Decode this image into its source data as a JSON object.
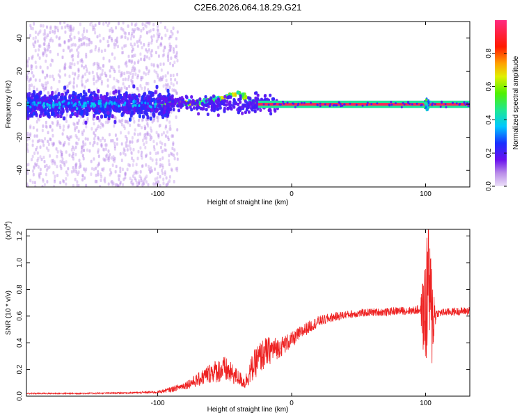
{
  "title": "C2E6.2026.064.18.29.G21",
  "colors": {
    "snr_line": "#ee2222",
    "frame": "#000000",
    "low_density": "#c9a8f2",
    "high_density": "#5a0fe6"
  },
  "chart_data": [
    {
      "type": "heatmap",
      "name": "spectrogram",
      "xlabel": "Height of straight line (km)",
      "ylabel": "Frequency (Hz)",
      "xlim": [
        -198,
        133
      ],
      "ylim": [
        -50,
        50
      ],
      "x_ticks": [
        -100,
        0,
        100
      ],
      "x_tick_labels": [
        "-100",
        "0",
        "100"
      ],
      "y_ticks": [
        -40,
        -20,
        0,
        20,
        40
      ],
      "y_tick_labels": [
        "-40",
        "-20",
        "0",
        "20",
        "40"
      ],
      "colorbar": {
        "label": "Normalized spectral amplitude",
        "range": [
          0,
          1
        ],
        "ticks": [
          0.0,
          0.2,
          0.4,
          0.6,
          0.8
        ],
        "tick_labels": [
          "0.0",
          "0.2",
          "0.4",
          "0.6",
          "0.8"
        ],
        "colormap": "rainbow (magenta-purple-blue-cyan-green-yellow-orange-red-pink)"
      },
      "features": [
        {
          "description": "broadband scatter",
          "x_range": [
            -198,
            -85
          ],
          "freq_spread": 50,
          "amplitude": 0.05
        },
        {
          "description": "dense core",
          "x_range": [
            -198,
            -90
          ],
          "freq_spread": 10,
          "amplitude": 0.15
        },
        {
          "description": "rising line",
          "points": [
            [
              -100,
              0
            ],
            [
              -70,
              1
            ],
            [
              -50,
              4
            ],
            [
              -40,
              7
            ],
            [
              -30,
              2
            ],
            [
              -20,
              1
            ],
            [
              -10,
              0
            ]
          ],
          "amplitude": 0.6
        },
        {
          "description": "steady carrier",
          "x_range": [
            -25,
            133
          ],
          "freq": 0,
          "amplitude": 0.95
        },
        {
          "description": "burst",
          "x": 101,
          "freq_spread": 6,
          "amplitude": 0.5
        }
      ]
    },
    {
      "type": "line",
      "name": "snr",
      "xlabel": "Height of straight line (km)",
      "ylabel": "SNR (10 * v/v)",
      "y_multiplier_label": "(x10",
      "y_multiplier_exp": "4",
      "xlim": [
        -198,
        133
      ],
      "ylim": [
        0,
        1.25
      ],
      "x_ticks": [
        -100,
        0,
        100
      ],
      "x_tick_labels": [
        "-100",
        "0",
        "100"
      ],
      "y_ticks": [
        0.0,
        0.2,
        0.4,
        0.6,
        0.8,
        1.0,
        1.2
      ],
      "y_tick_labels": [
        "0.0",
        "0.2",
        "0.4",
        "0.6",
        "0.8",
        "1.0",
        "1.2"
      ],
      "series": [
        {
          "name": "SNR",
          "x": [
            -198,
            -160,
            -120,
            -100,
            -90,
            -80,
            -70,
            -60,
            -50,
            -40,
            -35,
            -30,
            -25,
            -20,
            -15,
            -10,
            0,
            10,
            20,
            30,
            40,
            50,
            60,
            70,
            80,
            90,
            96,
            100,
            102,
            104,
            108,
            115,
            133
          ],
          "values": [
            0.02,
            0.02,
            0.025,
            0.03,
            0.05,
            0.08,
            0.12,
            0.18,
            0.2,
            0.14,
            0.1,
            0.2,
            0.28,
            0.32,
            0.35,
            0.36,
            0.42,
            0.5,
            0.56,
            0.59,
            0.61,
            0.62,
            0.63,
            0.63,
            0.64,
            0.64,
            0.65,
            0.6,
            0.95,
            0.6,
            0.62,
            0.63,
            0.64
          ],
          "noise_amplitude": [
            0.005,
            0.005,
            0.006,
            0.01,
            0.02,
            0.03,
            0.05,
            0.08,
            0.1,
            0.06,
            0.05,
            0.1,
            0.12,
            0.12,
            0.1,
            0.08,
            0.06,
            0.05,
            0.04,
            0.035,
            0.03,
            0.03,
            0.03,
            0.03,
            0.03,
            0.03,
            0.04,
            0.5,
            0.5,
            0.5,
            0.03,
            0.03,
            0.03
          ]
        }
      ]
    }
  ]
}
